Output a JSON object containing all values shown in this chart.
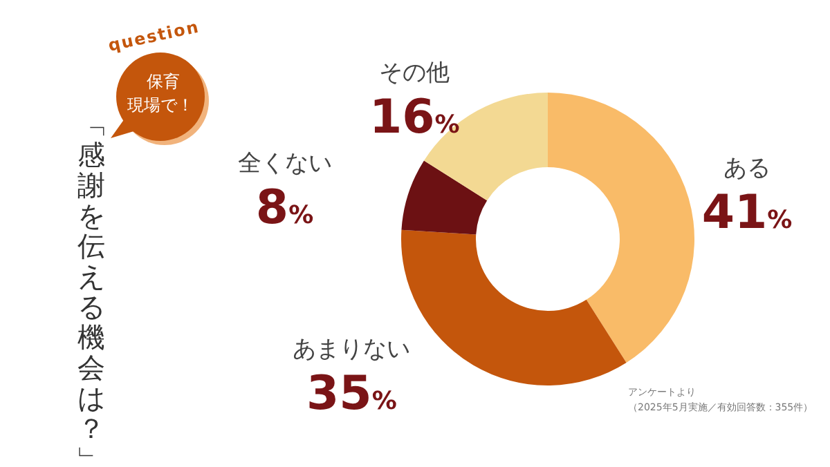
{
  "chart_data": {
    "type": "donut",
    "title": "「感謝を伝える機会は？」",
    "subtitle": "保育現場で！",
    "categories": [
      "ある",
      "あまりない",
      "全くない",
      "その他"
    ],
    "values": [
      41,
      35,
      8,
      16
    ],
    "colors": [
      "#f9bb68",
      "#c4560c",
      "#6c1113",
      "#f3d993"
    ],
    "value_labels": [
      "41%",
      "35%",
      "8%",
      "16%"
    ],
    "annotations": [
      "question",
      "アンケートより",
      "（2025年5月実施／有効回答数：355件）"
    ]
  }
}
